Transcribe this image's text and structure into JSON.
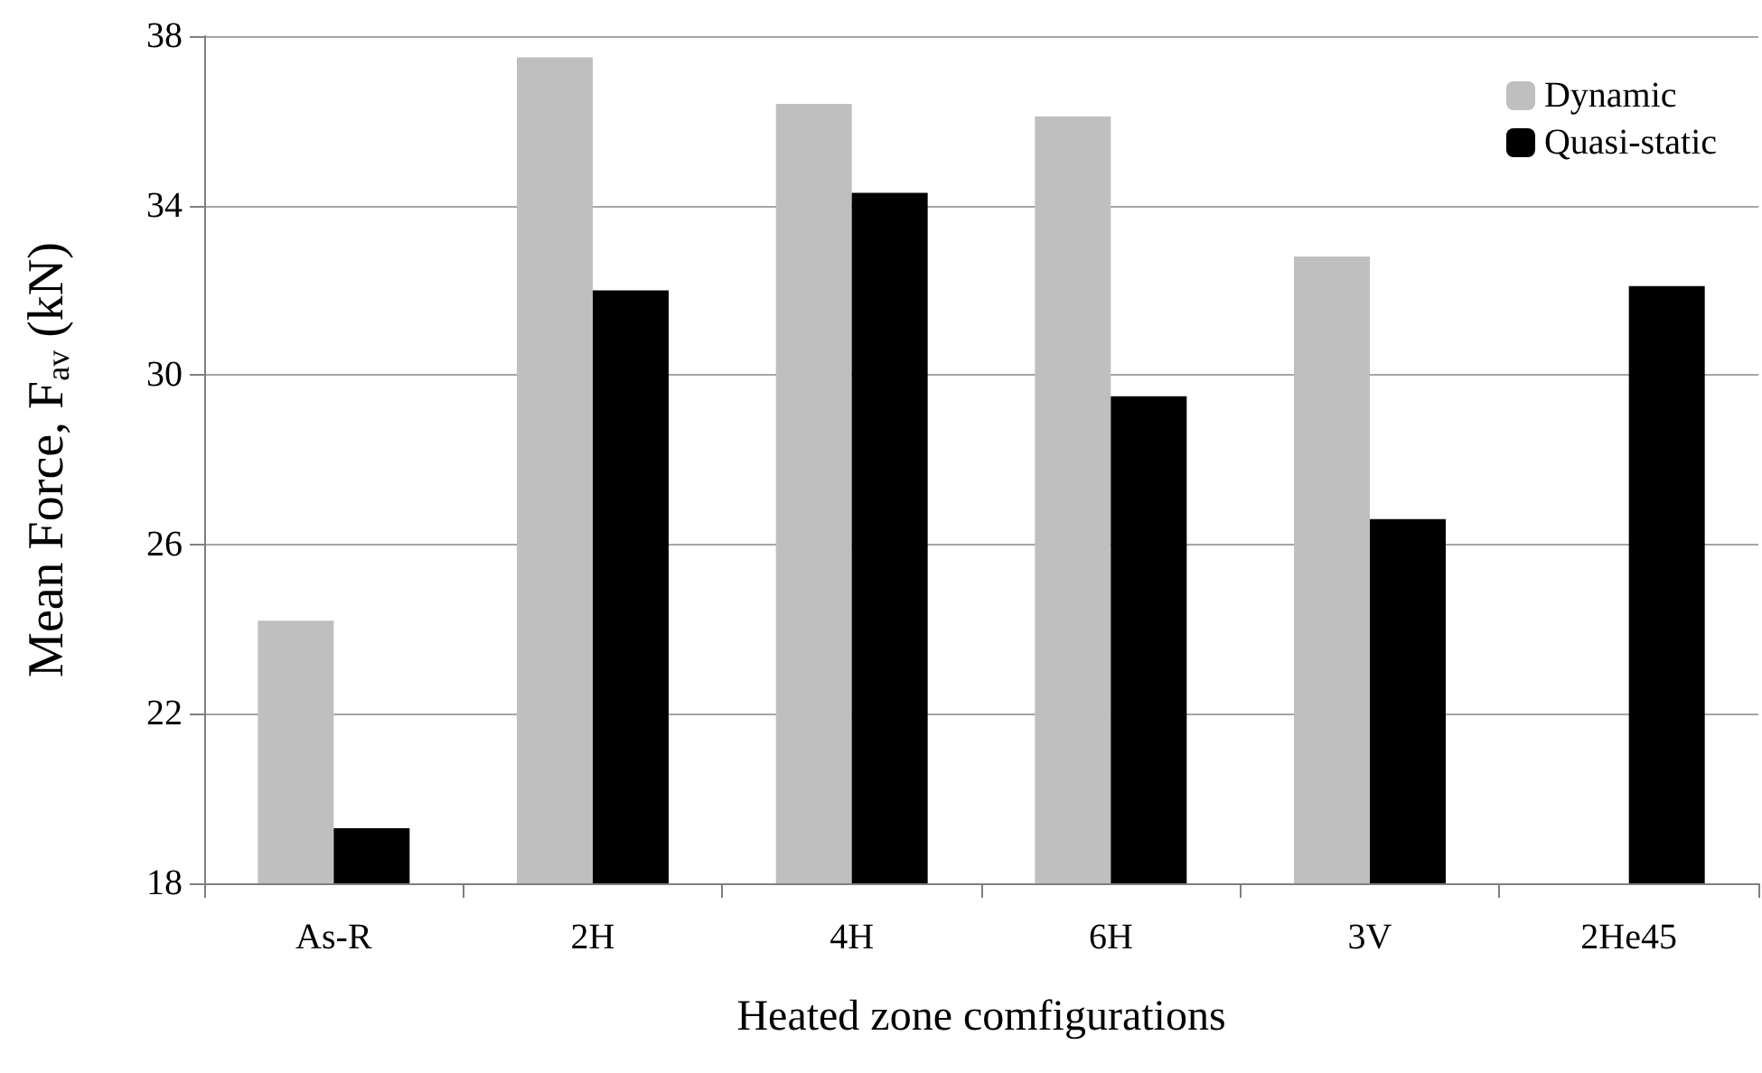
{
  "chart_data": {
    "type": "bar",
    "xlabel": "Heated zone comfigurations",
    "ylabel": "Mean Force, F$_{av}$ (kN)",
    "categories": [
      "As-R",
      "2H",
      "4H",
      "6H",
      "3V",
      "2He45"
    ],
    "series": [
      {
        "name": "Dynamic",
        "color": "#bfbfbf",
        "values": [
          24.2,
          37.5,
          36.4,
          36.1,
          32.8,
          null
        ]
      },
      {
        "name": "Quasi-static",
        "color": "#000000",
        "values": [
          19.3,
          32.0,
          34.3,
          29.5,
          26.6,
          32.1
        ]
      }
    ],
    "ylim": [
      18,
      38
    ],
    "yticks": [
      18,
      22,
      26,
      30,
      34,
      38
    ],
    "grid": "y",
    "legend": "top right"
  }
}
